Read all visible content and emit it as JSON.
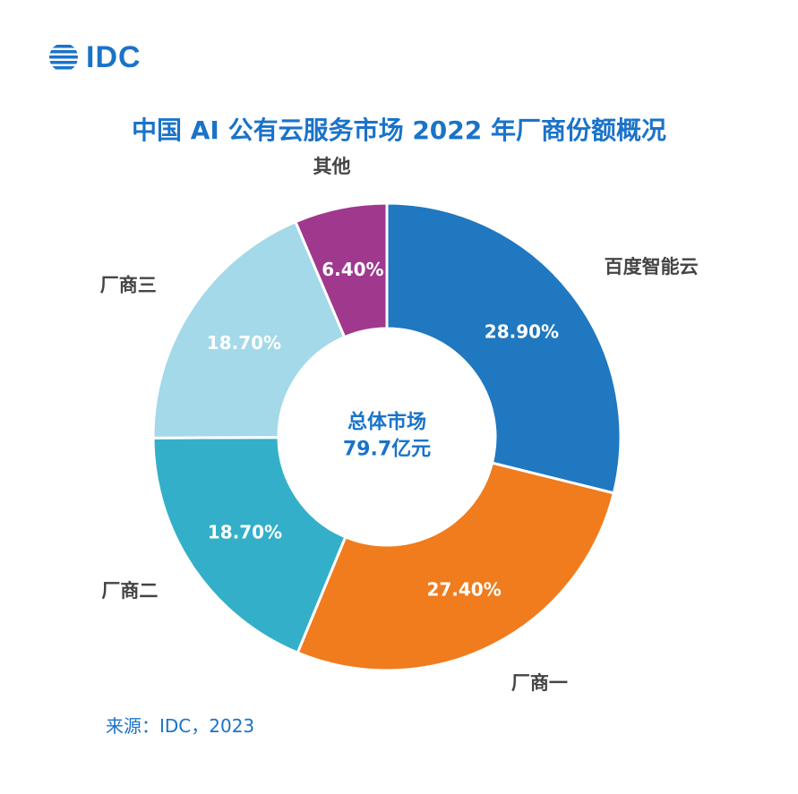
{
  "logo": {
    "text": "IDC",
    "color": "#1a73c9"
  },
  "title": "中国 AI 公有云服务市场 2022 年厂商份额概况",
  "center_text": {
    "line1": "总体市场",
    "line2": "79.7亿元"
  },
  "source": "来源：IDC，2023",
  "chart_data": {
    "type": "pie",
    "donut": true,
    "title": "中国 AI 公有云服务市场 2022 年厂商份额概况",
    "unit": "%",
    "total": "79.7亿元",
    "slices": [
      {
        "label": "百度智能云",
        "value": 28.9,
        "display": "28.90%",
        "color": "#1f78c0"
      },
      {
        "label": "厂商一",
        "value": 27.4,
        "display": "27.40%",
        "color": "#f07c1e"
      },
      {
        "label": "厂商二",
        "value": 18.7,
        "display": "18.70%",
        "color": "#33afc9"
      },
      {
        "label": "厂商三",
        "value": 18.7,
        "display": "18.70%",
        "color": "#a3d9e8"
      },
      {
        "label": "其他",
        "value": 6.4,
        "display": "6.40%",
        "color": "#a0388e"
      }
    ]
  }
}
